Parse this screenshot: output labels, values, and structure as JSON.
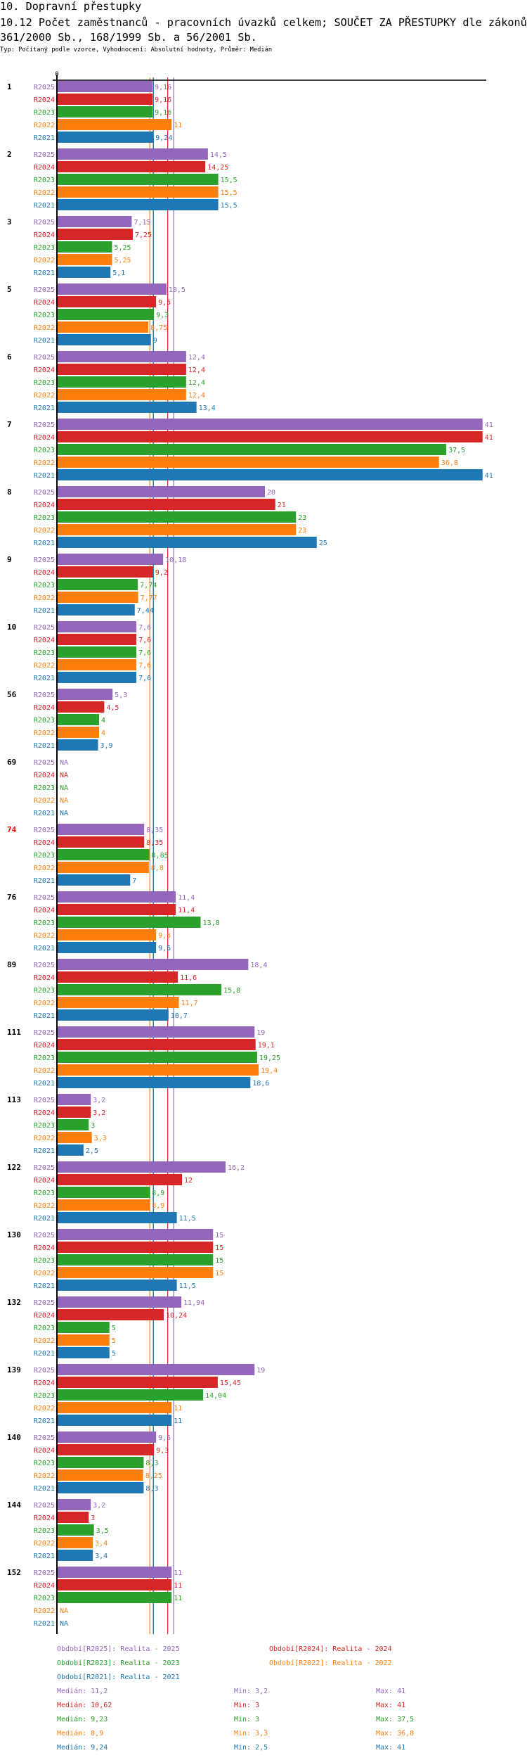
{
  "header": {
    "section_title": "10. Dopravní přestupky",
    "chart_title": "10.12 Počet zaměstnanců - pracovních úvazků celkem; SOUČET ZA PŘESTUPKY dle zákonů 361/2000 Sb., 168/1999 Sb. a 56/2001 Sb.",
    "type_line": "Typ: Počítaný podle vzorce, Vyhodnocení: Absolutní hodnoty, Průměr: Medián"
  },
  "chart_data": {
    "type": "bar",
    "orientation": "horizontal",
    "title": "10.12 Počet zaměstnanců - pracovních úvazků celkem; SOUČET ZA PŘESTUPKY dle zákonů 361/2000 Sb., 168/1999 Sb. a 56/2001 Sb.",
    "x_tick_label": "0",
    "xlim": [
      0,
      41
    ],
    "series": [
      {
        "name": "R2025",
        "color": "#9467bd"
      },
      {
        "name": "R2024",
        "color": "#d62728"
      },
      {
        "name": "R2023",
        "color": "#2ca02c"
      },
      {
        "name": "R2022",
        "color": "#ff7f0e"
      },
      {
        "name": "R2021",
        "color": "#1f77b4"
      }
    ],
    "categories": [
      {
        "label": "1",
        "values": [
          9.16,
          9.16,
          9.16,
          11,
          9.24
        ]
      },
      {
        "label": "2",
        "values": [
          14.5,
          14.25,
          15.5,
          15.5,
          15.5
        ]
      },
      {
        "label": "3",
        "values": [
          7.15,
          7.25,
          5.25,
          5.25,
          5.1
        ]
      },
      {
        "label": "5",
        "values": [
          10.5,
          9.5,
          9.3,
          8.75,
          9
        ]
      },
      {
        "label": "6",
        "values": [
          12.4,
          12.4,
          12.4,
          12.4,
          13.4
        ]
      },
      {
        "label": "7",
        "values": [
          41,
          41,
          37.5,
          36.8,
          41
        ]
      },
      {
        "label": "8",
        "values": [
          20,
          21,
          23,
          23,
          25
        ]
      },
      {
        "label": "9",
        "values": [
          10.18,
          9.2,
          7.74,
          7.77,
          7.44
        ]
      },
      {
        "label": "10",
        "values": [
          7.6,
          7.6,
          7.6,
          7.6,
          7.6
        ]
      },
      {
        "label": "56",
        "values": [
          5.3,
          4.5,
          4,
          4,
          3.9
        ]
      },
      {
        "label": "69",
        "values": [
          null,
          null,
          null,
          null,
          null
        ]
      },
      {
        "label": "74",
        "values": [
          8.35,
          8.35,
          8.85,
          8.8,
          7
        ],
        "highlight": true
      },
      {
        "label": "76",
        "values": [
          11.4,
          11.4,
          13.8,
          9.5,
          9.5
        ]
      },
      {
        "label": "89",
        "values": [
          18.4,
          11.6,
          15.8,
          11.7,
          10.7
        ]
      },
      {
        "label": "111",
        "values": [
          19,
          19.1,
          19.25,
          19.4,
          18.6
        ]
      },
      {
        "label": "113",
        "values": [
          3.2,
          3.2,
          3,
          3.3,
          2.5
        ]
      },
      {
        "label": "122",
        "values": [
          16.2,
          12,
          8.9,
          8.9,
          11.5
        ]
      },
      {
        "label": "130",
        "values": [
          15,
          15,
          15,
          15,
          11.5
        ]
      },
      {
        "label": "132",
        "values": [
          11.94,
          10.24,
          5,
          5,
          5
        ]
      },
      {
        "label": "139",
        "values": [
          19,
          15.45,
          14.04,
          11,
          11
        ]
      },
      {
        "label": "140",
        "values": [
          9.5,
          9.3,
          8.3,
          8.25,
          8.3
        ]
      },
      {
        "label": "144",
        "values": [
          3.2,
          3,
          3.5,
          3.4,
          3.4
        ]
      },
      {
        "label": "152",
        "values": [
          11,
          11,
          11,
          null,
          null
        ]
      }
    ],
    "na_label": "NA",
    "highlight_color": "#ff0000",
    "medians": [
      11.2,
      10.62,
      9.23,
      8.9,
      9.24
    ]
  },
  "legend": {
    "periods": [
      "Období[R2025]: Realita - 2025",
      "Období[R2024]: Realita - 2024",
      "Období[R2023]: Realita - 2023",
      "Období[R2022]: Realita - 2022",
      "Období[R2021]: Realita - 2021"
    ],
    "stats": [
      {
        "median": "Medián: 11,2",
        "min": "Min: 3,2",
        "max": "Max: 41"
      },
      {
        "median": "Medián: 10,62",
        "min": "Min: 3",
        "max": "Max: 41"
      },
      {
        "median": "Medián: 9,23",
        "min": "Min: 3",
        "max": "Max: 37,5"
      },
      {
        "median": "Medián: 8,9",
        "min": "Min: 3,3",
        "max": "Max: 36,8"
      },
      {
        "median": "Medián: 9,24",
        "min": "Min: 2,5",
        "max": "Max: 41"
      }
    ]
  }
}
